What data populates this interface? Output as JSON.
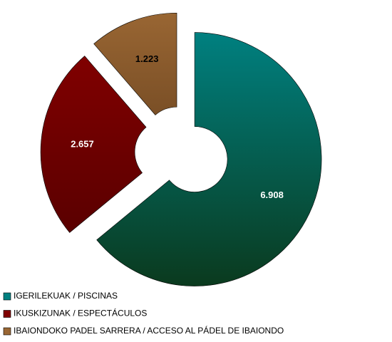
{
  "chart_data": {
    "type": "donut",
    "categories": [
      "IGERILEKUAK / PISCINAS",
      "IKUSKIZUNAK / ESPECTÁCULOS",
      "IBAIONDOKO PADEL SARRERA / ACCESO AL PÁDEL DE IBAIONDO"
    ],
    "values": [
      6908,
      2657,
      1223
    ],
    "value_labels": [
      "6.908",
      "2.657",
      "1.223"
    ],
    "colors": [
      "#008080",
      "#800000",
      "#996633"
    ],
    "label_colors": [
      "#ffffff",
      "#ffffff",
      "#000000"
    ]
  }
}
